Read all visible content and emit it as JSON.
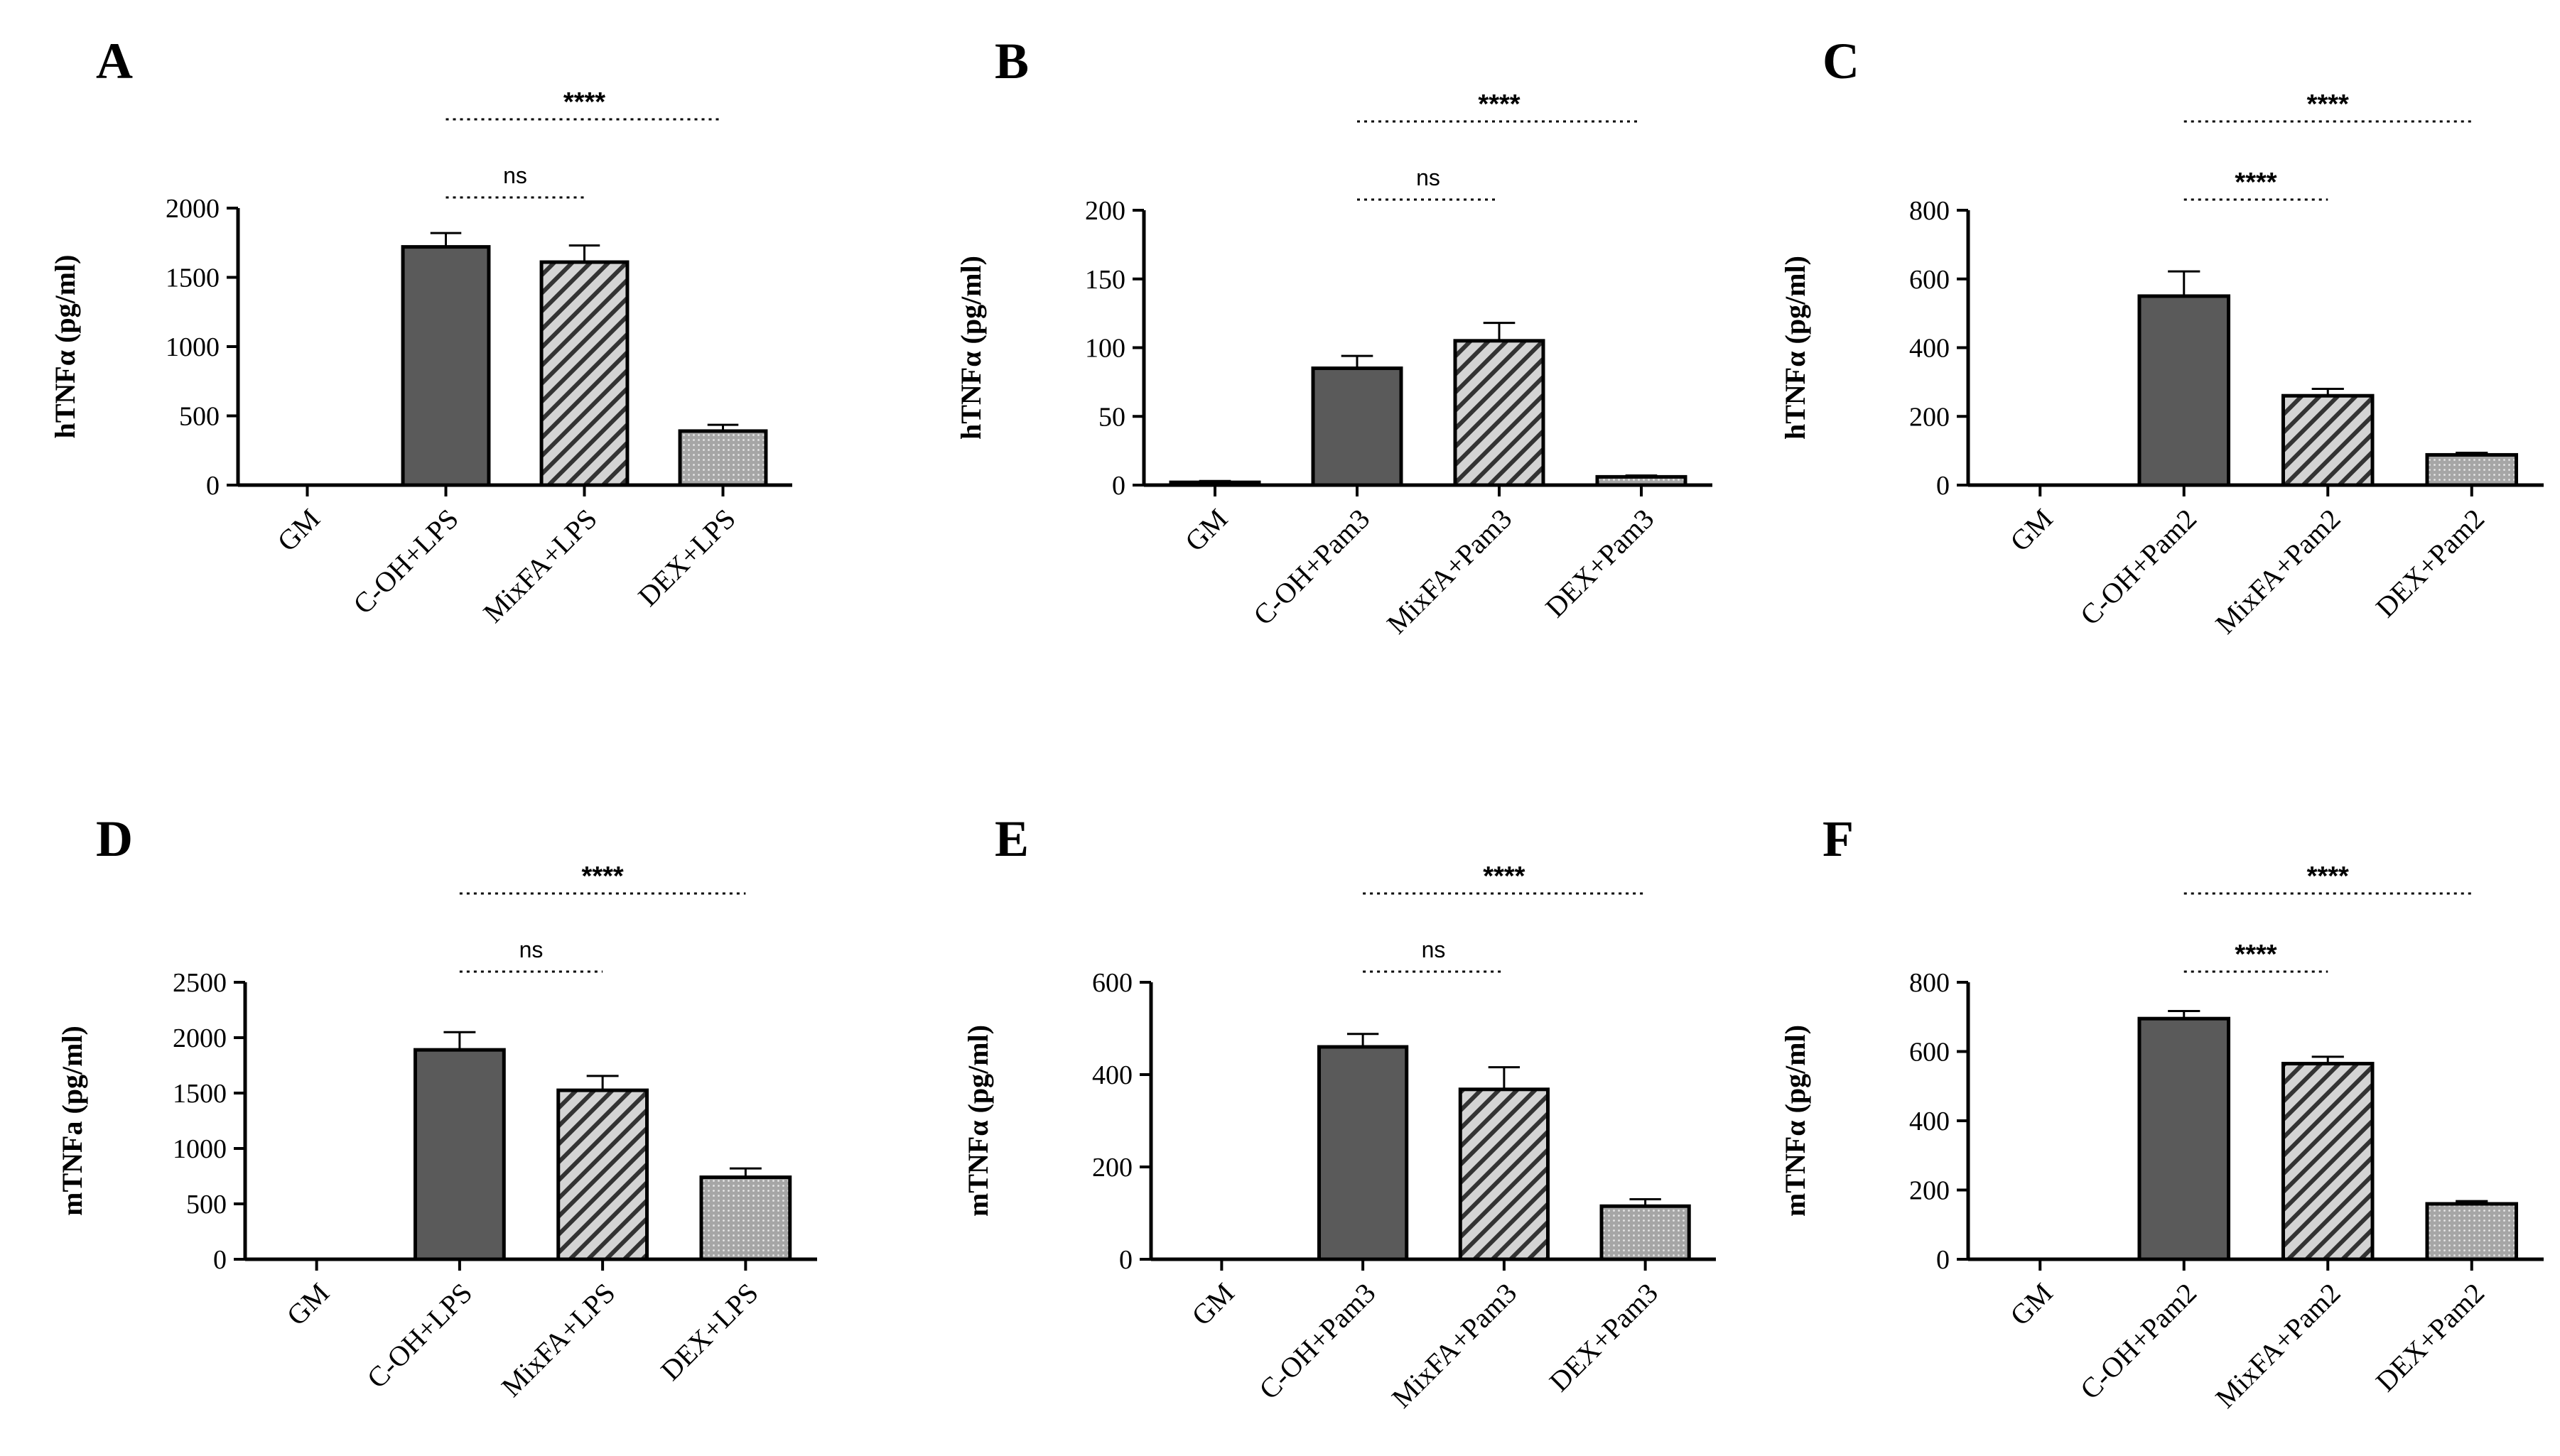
{
  "colors": {
    "solid": "#5a5a5a",
    "hatch": "#d4d4d4",
    "dot": "#a6a6a6",
    "ink": "#000000"
  },
  "chart_data": [
    {
      "panel": "A",
      "type": "bar",
      "ylabel": "hTNFα (pg/ml)",
      "ylim": [
        0,
        2000
      ],
      "ticks": [
        0,
        500,
        1000,
        1500,
        2000
      ],
      "categories": [
        "GM",
        "C-OH+LPS",
        "MixFA+LPS",
        "DEX+LPS"
      ],
      "values": [
        0,
        1720,
        1610,
        390
      ],
      "errors": [
        0,
        100,
        120,
        45
      ],
      "patterns": [
        "solid",
        "solid",
        "hatch",
        "dot"
      ],
      "significance": [
        {
          "from": 1,
          "to": 2,
          "label": "ns",
          "level": 0
        },
        {
          "from": 1,
          "to": 3,
          "label": "****",
          "level": 1
        }
      ]
    },
    {
      "panel": "B",
      "type": "bar",
      "ylabel": "hTNFα (pg/ml)",
      "ylim": [
        0,
        200
      ],
      "ticks": [
        0,
        50,
        100,
        150,
        200
      ],
      "categories": [
        "GM",
        "C-OH+Pam3",
        "MixFA+Pam3",
        "DEX+Pam3"
      ],
      "values": [
        2,
        85,
        105,
        6
      ],
      "errors": [
        1,
        9,
        13,
        1
      ],
      "patterns": [
        "solid",
        "solid",
        "hatch",
        "dot"
      ],
      "significance": [
        {
          "from": 1,
          "to": 2,
          "label": "ns",
          "level": 0
        },
        {
          "from": 1,
          "to": 3,
          "label": "****",
          "level": 1
        }
      ]
    },
    {
      "panel": "C",
      "type": "bar",
      "ylabel": "hTNFα (pg/ml)",
      "ylim": [
        0,
        800
      ],
      "ticks": [
        0,
        200,
        400,
        600,
        800
      ],
      "categories": [
        "GM",
        "C-OH+Pam2",
        "MixFA+Pam2",
        "DEX+Pam2"
      ],
      "values": [
        0,
        550,
        260,
        88
      ],
      "errors": [
        0,
        72,
        20,
        6
      ],
      "patterns": [
        "solid",
        "solid",
        "hatch",
        "dot"
      ],
      "significance": [
        {
          "from": 1,
          "to": 2,
          "label": "****",
          "level": 0
        },
        {
          "from": 1,
          "to": 3,
          "label": "****",
          "level": 1
        }
      ]
    },
    {
      "panel": "D",
      "type": "bar",
      "ylabel": "mTNFa (pg/ml)",
      "ylim": [
        0,
        2500
      ],
      "ticks": [
        0,
        500,
        1000,
        1500,
        2000,
        2500
      ],
      "categories": [
        "GM",
        "C-OH+LPS",
        "MixFA+LPS",
        "DEX+LPS"
      ],
      "values": [
        0,
        1890,
        1525,
        740
      ],
      "errors": [
        0,
        160,
        130,
        80
      ],
      "patterns": [
        "solid",
        "solid",
        "hatch",
        "dot"
      ],
      "significance": [
        {
          "from": 1,
          "to": 2,
          "label": "ns",
          "level": 0
        },
        {
          "from": 1,
          "to": 3,
          "label": "****",
          "level": 1
        }
      ]
    },
    {
      "panel": "E",
      "type": "bar",
      "ylabel": "mTNFα (pg/ml)",
      "ylim": [
        0,
        600
      ],
      "ticks": [
        0,
        200,
        400,
        600
      ],
      "categories": [
        "GM",
        "C-OH+Pam3",
        "MixFA+Pam3",
        "DEX+Pam3"
      ],
      "values": [
        0,
        460,
        368,
        115
      ],
      "errors": [
        0,
        28,
        48,
        15
      ],
      "patterns": [
        "solid",
        "solid",
        "hatch",
        "dot"
      ],
      "significance": [
        {
          "from": 1,
          "to": 2,
          "label": "ns",
          "level": 0
        },
        {
          "from": 1,
          "to": 3,
          "label": "****",
          "level": 1
        }
      ]
    },
    {
      "panel": "F",
      "type": "bar",
      "ylabel": "mTNFα (pg/ml)",
      "ylim": [
        0,
        800
      ],
      "ticks": [
        0,
        200,
        400,
        600,
        800
      ],
      "categories": [
        "GM",
        "C-OH+Pam2",
        "MixFA+Pam2",
        "DEX+Pam2"
      ],
      "values": [
        0,
        695,
        565,
        160
      ],
      "errors": [
        0,
        22,
        20,
        8
      ],
      "patterns": [
        "solid",
        "solid",
        "hatch",
        "dot"
      ],
      "significance": [
        {
          "from": 1,
          "to": 2,
          "label": "****",
          "level": 0
        },
        {
          "from": 1,
          "to": 3,
          "label": "****",
          "level": 1
        }
      ]
    }
  ]
}
